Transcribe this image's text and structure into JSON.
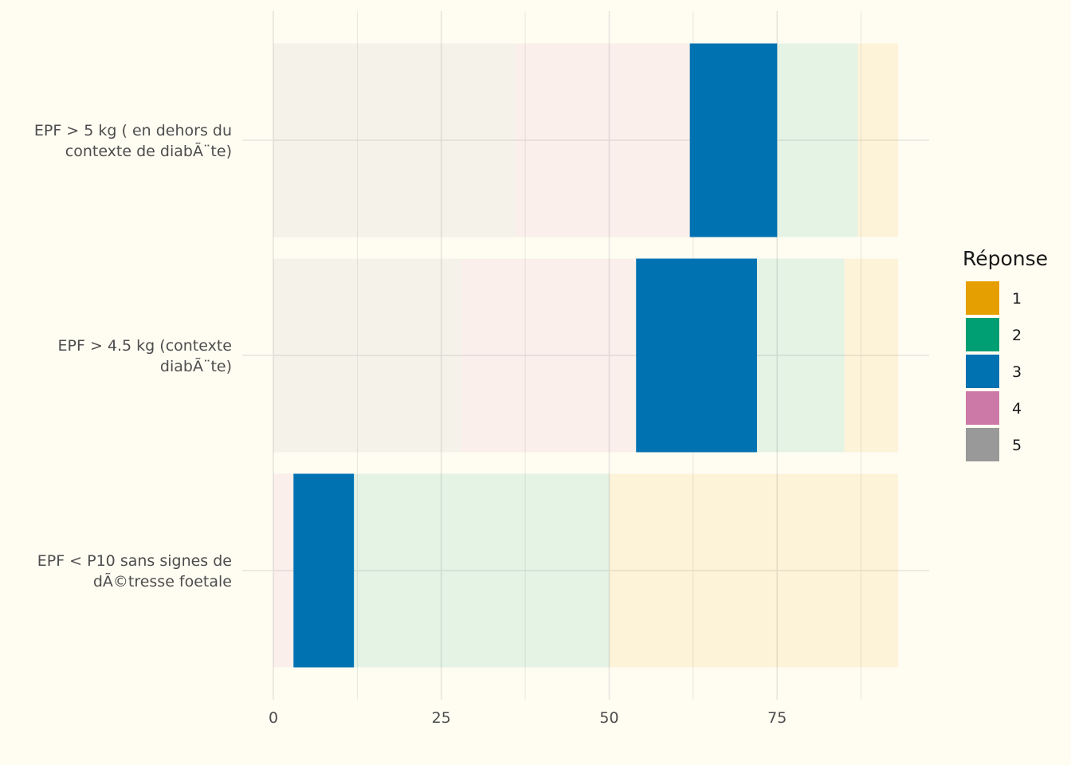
{
  "chart_data": {
    "type": "bar",
    "orientation": "horizontal",
    "stacked": true,
    "highlighted_series": "3",
    "categories": [
      "EPF > 5 kg ( en dehors du\ncontexte de diabÃ¨te)",
      "EPF > 4.5 kg (contexte\ndiabÃ¨te)",
      "EPF < P10 sans signes de\ndÃ©tresse foetale"
    ],
    "series": [
      {
        "name": "5",
        "color": "#999999",
        "values": [
          36,
          28,
          0
        ]
      },
      {
        "name": "4",
        "color": "#cc79a7",
        "values": [
          26,
          26,
          3
        ]
      },
      {
        "name": "3",
        "color": "#0072b2",
        "values": [
          13,
          18,
          9
        ]
      },
      {
        "name": "2",
        "color": "#009e73",
        "values": [
          12,
          13,
          38
        ]
      },
      {
        "name": "1",
        "color": "#e69f00",
        "values": [
          6,
          8,
          43
        ]
      }
    ],
    "xlim": [
      0,
      93
    ],
    "xticks": [
      "0",
      "25",
      "50",
      "75"
    ],
    "xtick_values": [
      0,
      25,
      50,
      75
    ],
    "legend_title": "Réponse",
    "legend_entries": [
      "1",
      "2",
      "3",
      "4",
      "5"
    ],
    "legend_position": "right",
    "grid": true
  }
}
